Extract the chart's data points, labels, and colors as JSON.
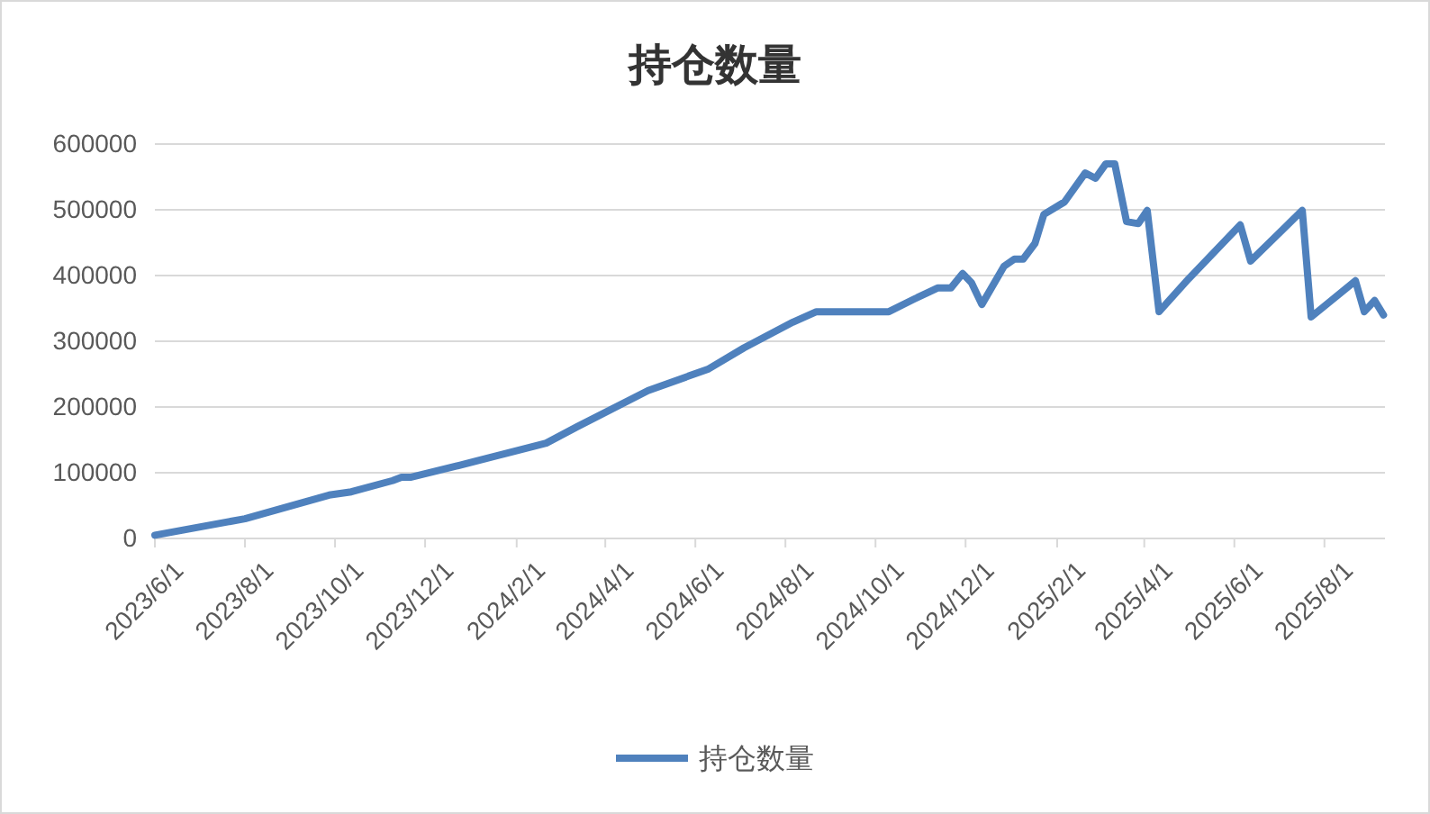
{
  "chart_data": {
    "type": "line",
    "title": "持仓数量",
    "x": [
      "2023-06-01",
      "2023-08-01",
      "2023-09-27",
      "2023-10-12",
      "2023-11-09",
      "2023-11-15",
      "2023-11-21",
      "2023-12-22",
      "2024-01-24",
      "2024-02-21",
      "2024-03-13",
      "2024-04-30",
      "2024-06-10",
      "2024-07-04",
      "2024-08-06",
      "2024-08-22",
      "2024-10-10",
      "2024-10-27",
      "2024-11-12",
      "2024-11-21",
      "2024-11-29",
      "2024-12-05",
      "2024-12-12",
      "2024-12-27",
      "2025-01-03",
      "2025-01-09",
      "2025-01-17",
      "2025-01-23",
      "2025-02-06",
      "2025-02-20",
      "2025-02-27",
      "2025-03-06",
      "2025-03-12",
      "2025-03-20",
      "2025-03-28",
      "2025-04-03",
      "2025-04-11",
      "2025-05-01",
      "2025-06-05",
      "2025-06-12",
      "2025-07-17",
      "2025-07-23",
      "2025-08-22",
      "2025-08-28",
      "2025-09-04",
      "2025-09-10"
    ],
    "series": [
      {
        "name": "持仓数量",
        "color": "#4f81bd",
        "values": [
          5000,
          30000,
          66000,
          71000,
          88000,
          93000,
          93000,
          110000,
          129000,
          145000,
          170000,
          225000,
          258000,
          290000,
          329000,
          345000,
          345000,
          364000,
          381000,
          381000,
          403000,
          389000,
          356000,
          414000,
          425000,
          425000,
          449000,
          493000,
          512000,
          556000,
          548000,
          570000,
          570000,
          482000,
          479000,
          499000,
          345000,
          395000,
          477000,
          422000,
          499000,
          337000,
          392000,
          345000,
          362000,
          340000
        ]
      }
    ],
    "xlim": [
      "2023-06-01",
      "2025-09-11"
    ],
    "xticks": [
      {
        "value": "2023-06-01",
        "label": "2023/6/1"
      },
      {
        "value": "2023-08-01",
        "label": "2023/8/1"
      },
      {
        "value": "2023-10-01",
        "label": "2023/10/1"
      },
      {
        "value": "2023-12-01",
        "label": "2023/12/1"
      },
      {
        "value": "2024-02-01",
        "label": "2024/2/1"
      },
      {
        "value": "2024-04-01",
        "label": "2024/4/1"
      },
      {
        "value": "2024-06-01",
        "label": "2024/6/1"
      },
      {
        "value": "2024-08-01",
        "label": "2024/8/1"
      },
      {
        "value": "2024-10-01",
        "label": "2024/10/1"
      },
      {
        "value": "2024-12-01",
        "label": "2024/12/1"
      },
      {
        "value": "2025-02-01",
        "label": "2025/2/1"
      },
      {
        "value": "2025-04-01",
        "label": "2025/4/1"
      },
      {
        "value": "2025-06-01",
        "label": "2025/6/1"
      },
      {
        "value": "2025-08-01",
        "label": "2025/8/1"
      }
    ],
    "ylim": [
      0,
      600000
    ],
    "yticks": [
      0,
      100000,
      200000,
      300000,
      400000,
      500000,
      600000
    ],
    "grid": "y",
    "legend": "bottom",
    "marker": "none",
    "line_style": "solid"
  }
}
